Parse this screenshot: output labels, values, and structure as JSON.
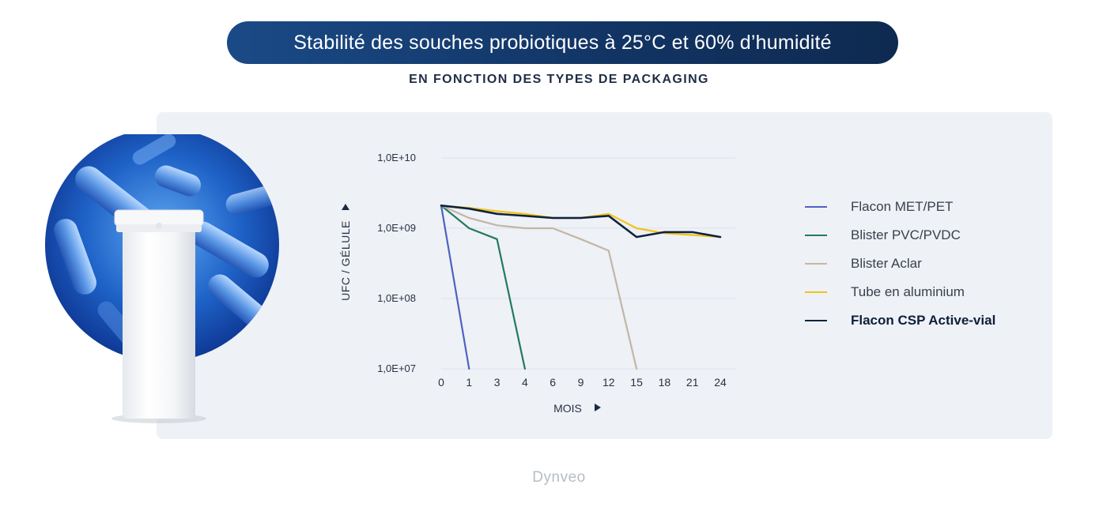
{
  "header": {
    "title": "Stabilité des souches probiotiques à 25°C et 60% d’humidité",
    "subtitle": "EN FONCTION DES TYPES DE PACKAGING"
  },
  "brand": "Dynveo",
  "colors": {
    "title_bg": "#123565",
    "panel_bg": "#eef1f6",
    "grid": "#dde1e8"
  },
  "chart_data": {
    "type": "line",
    "xlabel": "MOIS",
    "ylabel": "UFC / GÉLULE",
    "x_ticks": [
      "0",
      "1",
      "3",
      "4",
      "6",
      "9",
      "12",
      "15",
      "18",
      "21",
      "24"
    ],
    "y_ticks": [
      "1,0E+10",
      "1,0E+09",
      "1,0E+08",
      "1,0E+07"
    ],
    "y_scale": "log",
    "ylim": [
      10000000.0,
      10000000000.0
    ],
    "grid": true,
    "legend_position": "right",
    "series": [
      {
        "name": "Flacon  MET/PET",
        "color": "#4e62c0",
        "points": [
          [
            0,
            2100000000.0
          ],
          [
            1,
            10000000.0
          ]
        ]
      },
      {
        "name": "Blister PVC/PVDC",
        "color": "#227a5c",
        "points": [
          [
            0,
            2100000000.0
          ],
          [
            1,
            1000000000.0
          ],
          [
            3,
            700000000.0
          ],
          [
            4,
            10000000.0
          ]
        ]
      },
      {
        "name": "Blister Aclar",
        "color": "#c3b6a6",
        "points": [
          [
            0,
            2100000000.0
          ],
          [
            1,
            1400000000.0
          ],
          [
            3,
            1100000000.0
          ],
          [
            4,
            1000000000.0
          ],
          [
            6,
            1000000000.0
          ],
          [
            9,
            700000000.0
          ],
          [
            12,
            480000000.0
          ],
          [
            15,
            10000000.0
          ]
        ]
      },
      {
        "name": "Tube en aluminium",
        "color": "#f0c419",
        "points": [
          [
            0,
            2100000000.0
          ],
          [
            1,
            1950000000.0
          ],
          [
            3,
            1750000000.0
          ],
          [
            4,
            1600000000.0
          ],
          [
            6,
            1400000000.0
          ],
          [
            9,
            1400000000.0
          ],
          [
            12,
            1600000000.0
          ],
          [
            15,
            1000000000.0
          ],
          [
            18,
            850000000.0
          ],
          [
            21,
            800000000.0
          ],
          [
            24,
            750000000.0
          ]
        ]
      },
      {
        "name": "Flacon CSP Active-vial",
        "color": "#10223f",
        "bold": true,
        "points": [
          [
            0,
            2100000000.0
          ],
          [
            1,
            1900000000.0
          ],
          [
            3,
            1600000000.0
          ],
          [
            4,
            1500000000.0
          ],
          [
            6,
            1400000000.0
          ],
          [
            9,
            1400000000.0
          ],
          [
            12,
            1500000000.0
          ],
          [
            15,
            750000000.0
          ],
          [
            18,
            880000000.0
          ],
          [
            21,
            880000000.0
          ],
          [
            24,
            750000000.0
          ]
        ]
      }
    ]
  }
}
